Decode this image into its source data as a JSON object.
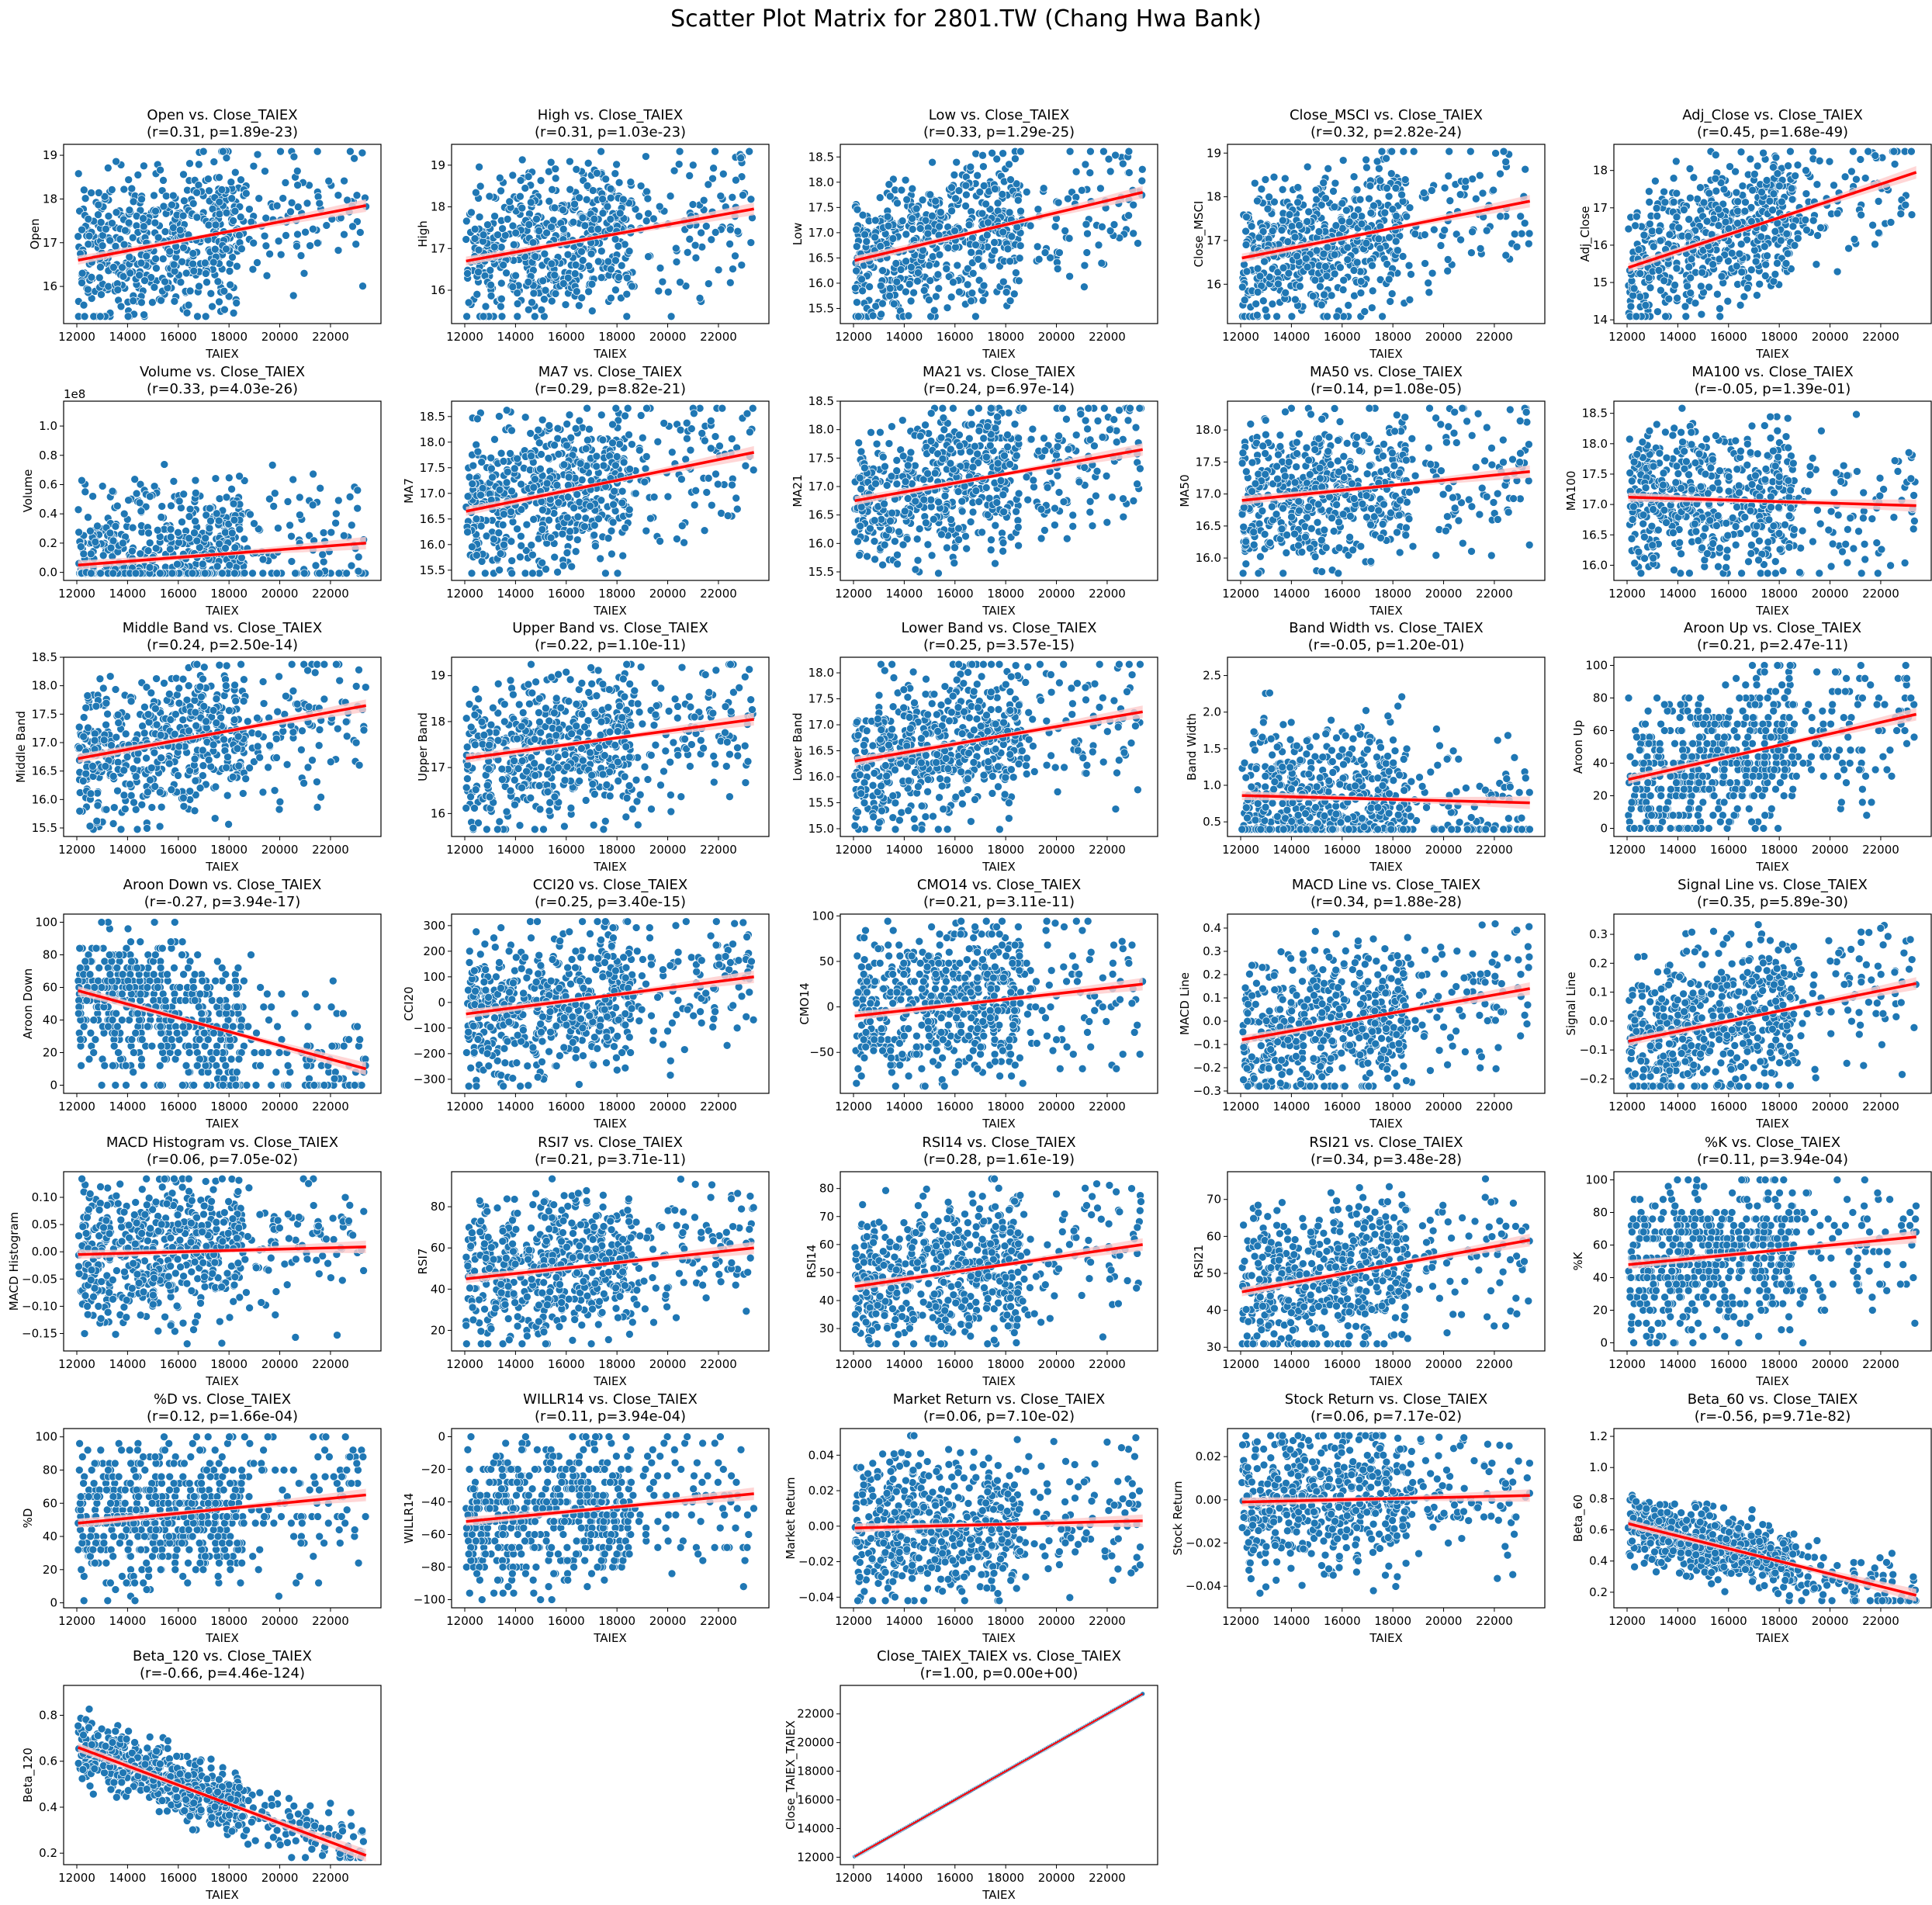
{
  "chart_data": {
    "type": "scatter",
    "title": "Scatter Plot Matrix for 2801.TW (Chang Hwa Bank)",
    "xlabel": "TAIEX",
    "xticks": [
      "12000",
      "14000",
      "16000",
      "18000",
      "20000",
      "22000"
    ],
    "xlim": [
      11480,
      23990
    ],
    "x_data_range": [
      12050,
      23400
    ],
    "point_color": "#1f77b4",
    "fit_color": "#ff0000",
    "band_color": "#ffcccc",
    "panels": [
      {
        "title": "Open vs. Close_TAIEX",
        "stats": "(r=0.31, p=1.89e-23)",
        "r": 0.31,
        "p": 1.89e-23,
        "ylabel": "Open",
        "yticks": [
          "16",
          "17",
          "18",
          "19"
        ],
        "ylim": [
          15.15,
          19.25
        ],
        "fit": [
          16.6,
          17.85
        ]
      },
      {
        "title": "High vs. Close_TAIEX",
        "stats": "(r=0.31, p=1.03e-23)",
        "r": 0.31,
        "p": 1.03e-23,
        "ylabel": "High",
        "yticks": [
          "16",
          "17",
          "18",
          "19"
        ],
        "ylim": [
          15.2,
          19.5
        ],
        "fit": [
          16.7,
          17.95
        ]
      },
      {
        "title": "Low vs. Close_TAIEX",
        "stats": "(r=0.33, p=1.29e-25)",
        "r": 0.33,
        "p": 1.29e-25,
        "ylabel": "Low",
        "yticks": [
          "15.5",
          "16.0",
          "16.5",
          "17.0",
          "17.5",
          "18.0",
          "18.5"
        ],
        "ylim": [
          15.2,
          18.75
        ],
        "fit": [
          16.45,
          17.8
        ]
      },
      {
        "title": "Close_MSCI vs. Close_TAIEX",
        "stats": "(r=0.32, p=2.82e-24)",
        "r": 0.32,
        "p": 2.82e-24,
        "ylabel": "Close_MSCI",
        "yticks": [
          "16",
          "17",
          "18",
          "19"
        ],
        "ylim": [
          15.1,
          19.2
        ],
        "fit": [
          16.6,
          17.9
        ]
      },
      {
        "title": "Adj_Close vs. Close_TAIEX",
        "stats": "(r=0.45, p=1.68e-49)",
        "r": 0.45,
        "p": 1.68e-49,
        "ylabel": "Adj_Close",
        "yticks": [
          "14",
          "15",
          "16",
          "17",
          "18"
        ],
        "ylim": [
          13.9,
          18.7
        ],
        "fit": [
          15.4,
          17.95
        ]
      },
      {
        "title": "Volume vs. Close_TAIEX",
        "stats": "(r=0.33, p=4.03e-26)",
        "r": 0.33,
        "p": 4.03e-26,
        "ylabel": "Volume",
        "offset_text": "1e8",
        "yticks": [
          "0.0",
          "0.2",
          "0.4",
          "0.6",
          "0.8",
          "1.0"
        ],
        "ylim": [
          -0.055,
          1.17
        ],
        "fit": [
          0.05,
          0.2
        ]
      },
      {
        "title": "MA7 vs. Close_TAIEX",
        "stats": "(r=0.29, p=8.82e-21)",
        "r": 0.29,
        "p": 8.82e-21,
        "ylabel": "MA7",
        "yticks": [
          "15.5",
          "16.0",
          "16.5",
          "17.0",
          "17.5",
          "18.0",
          "18.5"
        ],
        "ylim": [
          15.3,
          18.8
        ],
        "fit": [
          16.65,
          17.8
        ]
      },
      {
        "title": "MA21 vs. Close_TAIEX",
        "stats": "(r=0.24, p=6.97e-14)",
        "r": 0.24,
        "p": 6.97e-14,
        "ylabel": "MA21",
        "yticks": [
          "15.5",
          "16.0",
          "16.5",
          "17.0",
          "17.5",
          "18.0",
          "18.5"
        ],
        "ylim": [
          15.35,
          18.5
        ],
        "fit": [
          16.75,
          17.65
        ]
      },
      {
        "title": "MA50 vs. Close_TAIEX",
        "stats": "(r=0.14, p=1.08e-05)",
        "r": 0.14,
        "p": 1.08e-05,
        "ylabel": "MA50",
        "yticks": [
          "16.0",
          "16.5",
          "17.0",
          "17.5",
          "18.0"
        ],
        "ylim": [
          15.65,
          18.45
        ],
        "fit": [
          16.9,
          17.35
        ]
      },
      {
        "title": "MA100 vs. Close_TAIEX",
        "stats": "(r=-0.05, p=1.39e-01)",
        "r": -0.05,
        "p": 0.139,
        "ylabel": "MA100",
        "yticks": [
          "16.0",
          "16.5",
          "17.0",
          "17.5",
          "18.0",
          "18.5"
        ],
        "ylim": [
          15.75,
          18.7
        ],
        "fit": [
          17.12,
          16.98
        ]
      },
      {
        "title": "Middle Band vs. Close_TAIEX",
        "stats": "(r=0.24, p=2.50e-14)",
        "r": 0.24,
        "p": 2.5e-14,
        "ylabel": "Middle Band",
        "yticks": [
          "15.5",
          "16.0",
          "16.5",
          "17.0",
          "17.5",
          "18.0",
          "18.5"
        ],
        "ylim": [
          15.35,
          18.5
        ],
        "fit": [
          16.72,
          17.65
        ]
      },
      {
        "title": "Upper Band vs. Close_TAIEX",
        "stats": "(r=0.22, p=1.10e-11)",
        "r": 0.22,
        "p": 1.1e-11,
        "ylabel": "Upper Band",
        "yticks": [
          "16",
          "17",
          "18",
          "19"
        ],
        "ylim": [
          15.5,
          19.4
        ],
        "fit": [
          17.2,
          18.05
        ]
      },
      {
        "title": "Lower Band vs. Close_TAIEX",
        "stats": "(r=0.25, p=3.57e-15)",
        "r": 0.25,
        "p": 3.57e-15,
        "ylabel": "Lower Band",
        "yticks": [
          "15.0",
          "15.5",
          "16.0",
          "16.5",
          "17.0",
          "17.5",
          "18.0"
        ],
        "ylim": [
          14.85,
          18.3
        ],
        "fit": [
          16.3,
          17.25
        ]
      },
      {
        "title": "Band Width vs. Close_TAIEX",
        "stats": "(r=-0.05, p=1.20e-01)",
        "r": -0.05,
        "p": 0.12,
        "ylabel": "Band Width",
        "yticks": [
          "0.5",
          "1.0",
          "1.5",
          "2.0",
          "2.5"
        ],
        "ylim": [
          0.3,
          2.75
        ],
        "fit": [
          0.86,
          0.76
        ]
      },
      {
        "title": "Aroon Up vs. Close_TAIEX",
        "stats": "(r=0.21, p=2.47e-11)",
        "r": 0.21,
        "p": 2.47e-11,
        "ylabel": "Aroon Up",
        "yticks": [
          "0",
          "20",
          "40",
          "60",
          "80",
          "100"
        ],
        "ylim": [
          -5,
          105
        ],
        "fit": [
          30,
          70
        ]
      },
      {
        "title": "Aroon Down vs. Close_TAIEX",
        "stats": "(r=-0.27, p=3.94e-17)",
        "r": -0.27,
        "p": 3.94e-17,
        "ylabel": "Aroon Down",
        "yticks": [
          "0",
          "20",
          "40",
          "60",
          "80",
          "100"
        ],
        "ylim": [
          -5,
          105
        ],
        "fit": [
          58,
          10
        ]
      },
      {
        "title": "CCI20 vs. Close_TAIEX",
        "stats": "(r=0.25, p=3.40e-15)",
        "r": 0.25,
        "p": 3.4e-15,
        "ylabel": "CCI20",
        "yticks": [
          "−300",
          "−200",
          "−100",
          "0",
          "100",
          "200",
          "300"
        ],
        "ylim": [
          -355,
          345
        ],
        "fit": [
          -45,
          100
        ]
      },
      {
        "title": "CMO14 vs. Close_TAIEX",
        "stats": "(r=0.21, p=3.11e-11)",
        "r": 0.21,
        "p": 3.11e-11,
        "ylabel": "CMO14",
        "yticks": [
          "−50",
          "0",
          "50",
          "100"
        ],
        "ylim": [
          -95,
          102
        ],
        "fit": [
          -10,
          25
        ]
      },
      {
        "title": "MACD Line vs. Close_TAIEX",
        "stats": "(r=0.34, p=1.88e-28)",
        "r": 0.34,
        "p": 1.88e-28,
        "ylabel": "MACD Line",
        "yticks": [
          "−0.3",
          "−0.2",
          "−0.1",
          "0.0",
          "0.1",
          "0.2",
          "0.3",
          "0.4"
        ],
        "ylim": [
          -0.31,
          0.46
        ],
        "fit": [
          -0.08,
          0.14
        ]
      },
      {
        "title": "Signal Line vs. Close_TAIEX",
        "stats": "(r=0.35, p=5.89e-30)",
        "r": 0.35,
        "p": 5.89e-30,
        "ylabel": "Signal Line",
        "yticks": [
          "−0.2",
          "−0.1",
          "0.0",
          "0.1",
          "0.2",
          "0.3"
        ],
        "ylim": [
          -0.25,
          0.37
        ],
        "fit": [
          -0.07,
          0.13
        ]
      },
      {
        "title": "MACD Histogram vs. Close_TAIEX",
        "stats": "(r=0.06, p=7.05e-02)",
        "r": 0.06,
        "p": 0.0705,
        "ylabel": "MACD Histogram",
        "yticks": [
          "−0.15",
          "−0.10",
          "−0.05",
          "0.00",
          "0.05",
          "0.10"
        ],
        "ylim": [
          -0.182,
          0.147
        ],
        "fit": [
          -0.005,
          0.009
        ]
      },
      {
        "title": "RSI7 vs. Close_TAIEX",
        "stats": "(r=0.21, p=3.71e-11)",
        "r": 0.21,
        "p": 3.71e-11,
        "ylabel": "RSI7",
        "yticks": [
          "20",
          "40",
          "60",
          "80"
        ],
        "ylim": [
          10,
          97
        ],
        "fit": [
          45,
          60
        ]
      },
      {
        "title": "RSI14 vs. Close_TAIEX",
        "stats": "(r=0.28, p=1.61e-19)",
        "r": 0.28,
        "p": 1.61e-19,
        "ylabel": "RSI14",
        "yticks": [
          "30",
          "40",
          "50",
          "60",
          "70",
          "80"
        ],
        "ylim": [
          22,
          86
        ],
        "fit": [
          45,
          60
        ]
      },
      {
        "title": "RSI21 vs. Close_TAIEX",
        "stats": "(r=0.34, p=3.48e-28)",
        "r": 0.34,
        "p": 3.48e-28,
        "ylabel": "RSI21",
        "yticks": [
          "30",
          "40",
          "50",
          "60",
          "70"
        ],
        "ylim": [
          29,
          77.5
        ],
        "fit": [
          45,
          59
        ]
      },
      {
        "title": "%K vs. Close_TAIEX",
        "stats": "(r=0.11, p=3.94e-04)",
        "r": 0.11,
        "p": 0.000394,
        "ylabel": "%K",
        "yticks": [
          "0",
          "20",
          "40",
          "60",
          "80",
          "100"
        ],
        "ylim": [
          -5,
          105
        ],
        "fit": [
          48,
          65
        ]
      },
      {
        "title": "%D vs. Close_TAIEX",
        "stats": "(r=0.12, p=1.66e-04)",
        "r": 0.12,
        "p": 0.000166,
        "ylabel": "%D",
        "yticks": [
          "0",
          "20",
          "40",
          "60",
          "80",
          "100"
        ],
        "ylim": [
          -3,
          105
        ],
        "fit": [
          48,
          65
        ]
      },
      {
        "title": "WILLR14 vs. Close_TAIEX",
        "stats": "(r=0.11, p=3.94e-04)",
        "r": 0.11,
        "p": 0.000394,
        "ylabel": "WILLR14",
        "yticks": [
          "−100",
          "−80",
          "−60",
          "−40",
          "−20",
          "0"
        ],
        "ylim": [
          -105,
          5
        ],
        "fit": [
          -52,
          -35
        ]
      },
      {
        "title": "Market Return vs. Close_TAIEX",
        "stats": "(r=0.06, p=7.10e-02)",
        "r": 0.06,
        "p": 0.071,
        "ylabel": "Market Return",
        "yticks": [
          "−0.04",
          "−0.02",
          "0.00",
          "0.02",
          "0.04"
        ],
        "ylim": [
          -0.046,
          0.055
        ],
        "fit": [
          -0.001,
          0.003
        ]
      },
      {
        "title": "Stock Return vs. Close_TAIEX",
        "stats": "(r=0.06, p=7.17e-02)",
        "r": 0.06,
        "p": 0.0717,
        "ylabel": "Stock Return",
        "yticks": [
          "−0.04",
          "−0.02",
          "0.00",
          "0.02"
        ],
        "ylim": [
          -0.05,
          0.033
        ],
        "fit": [
          -0.001,
          0.002
        ]
      },
      {
        "title": "Beta_60 vs. Close_TAIEX",
        "stats": "(r=-0.56, p=9.71e-82)",
        "r": -0.56,
        "p": 9.71e-82,
        "ylabel": "Beta_60",
        "yticks": [
          "0.2",
          "0.4",
          "0.6",
          "0.8",
          "1.0",
          "1.2"
        ],
        "ylim": [
          0.1,
          1.25
        ],
        "fit": [
          0.64,
          0.18
        ]
      },
      {
        "title": "Beta_120 vs. Close_TAIEX",
        "stats": "(r=-0.66, p=4.46e-124)",
        "r": -0.66,
        "p": 4.46e-124,
        "ylabel": "Beta_120",
        "yticks": [
          "0.2",
          "0.4",
          "0.6",
          "0.8"
        ],
        "ylim": [
          0.15,
          0.93
        ],
        "fit": [
          0.66,
          0.19
        ]
      },
      {
        "title": "Close_TAIEX_TAIEX vs. Close_TAIEX",
        "stats": "(r=1.00, p=0.00e+00)",
        "r": 1.0,
        "p": 0.0,
        "ylabel": "Close_TAIEX_TAIEX",
        "yticks": [
          "12000",
          "14000",
          "16000",
          "18000",
          "20000",
          "22000"
        ],
        "ylim": [
          11480,
          23990
        ],
        "fit": [
          12050,
          23400
        ]
      }
    ]
  }
}
